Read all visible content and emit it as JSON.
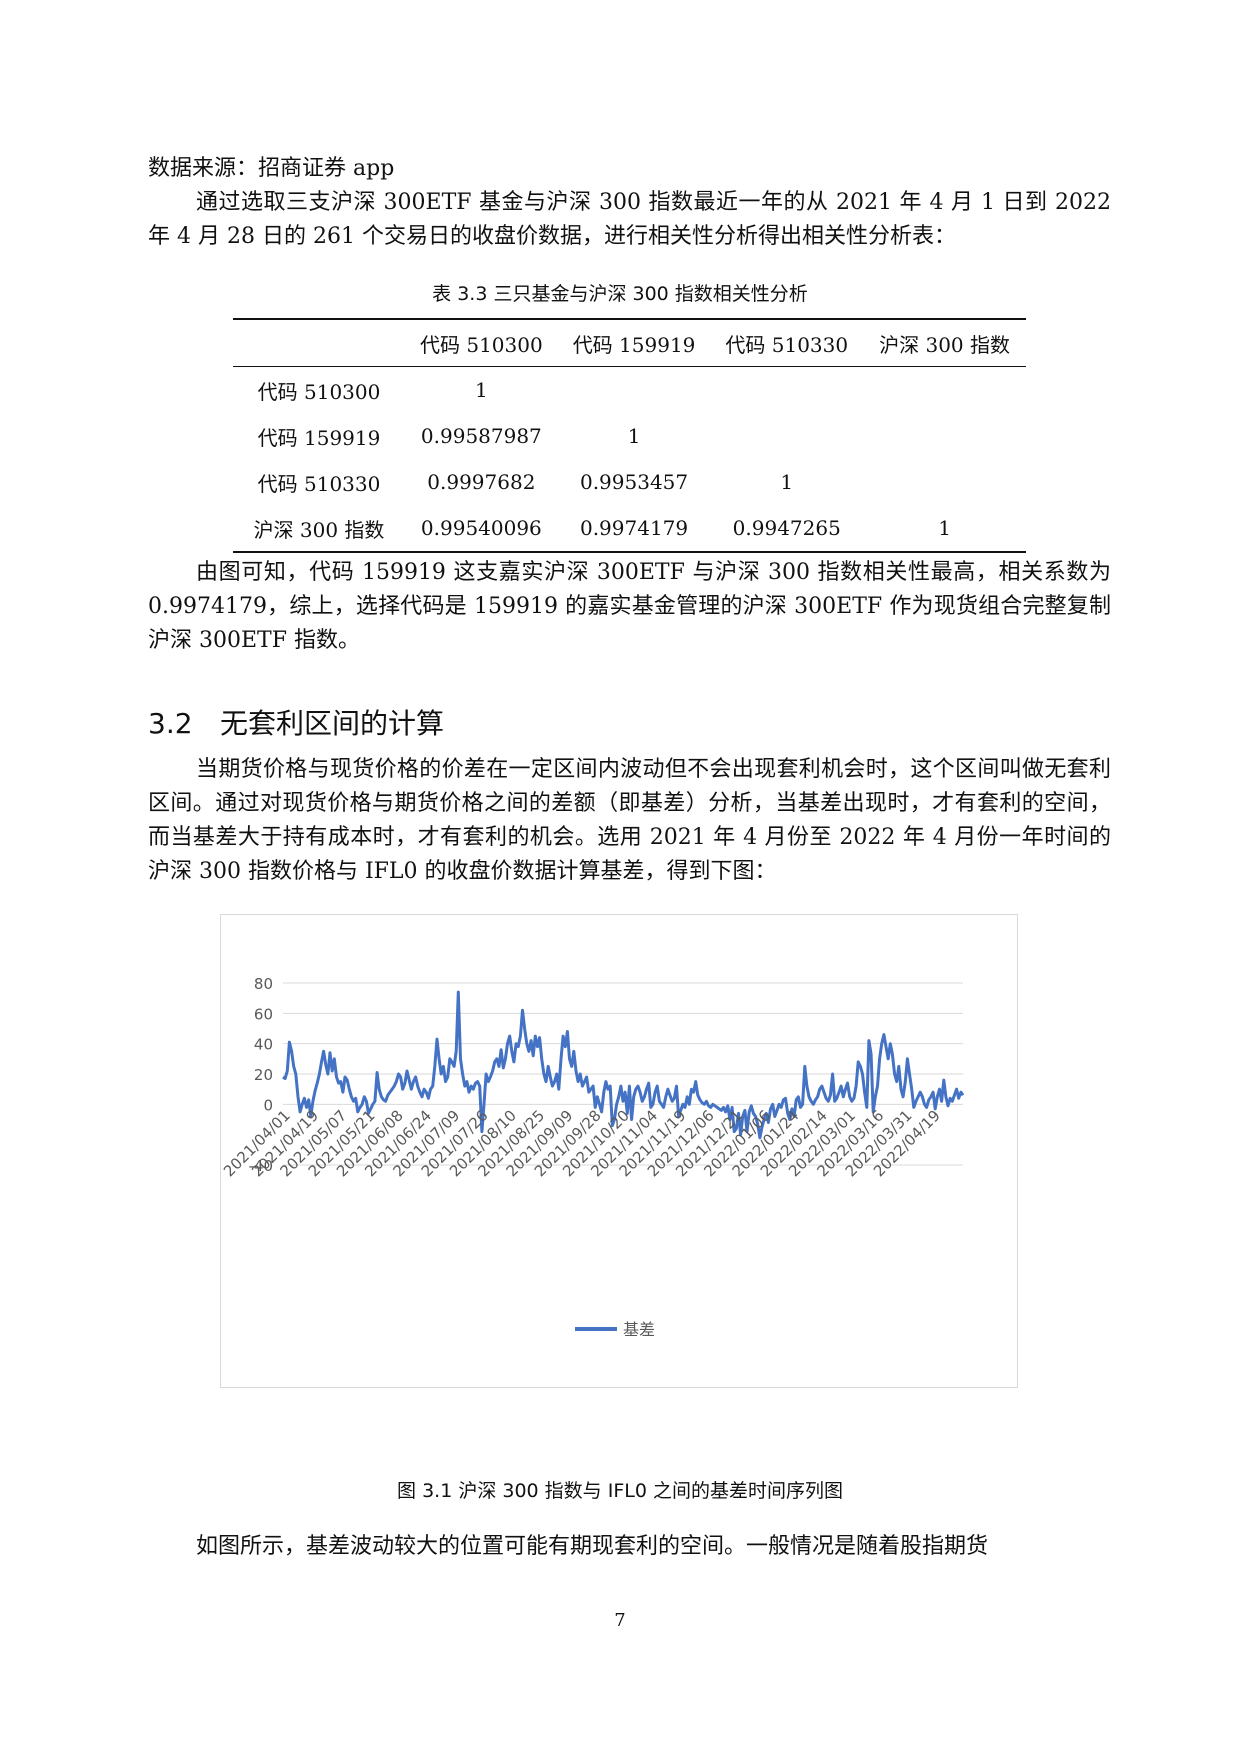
{
  "document": {
    "source_line": "数据来源：招商证券 app",
    "intro_paragraph": "通过选取三支沪深 300ETF 基金与沪深 300 指数最近一年的从 2021 年 4 月 1 日到 2022 年 4 月 28 日的 261 个交易日的收盘价数据，进行相关性分析得出相关性分析表：",
    "table_caption": "表 3.3  三只基金与沪深 300 指数相关性分析",
    "table": {
      "col_headers": [
        "代码 510300",
        "代码 159919",
        "代码 510330",
        "沪深 300 指数"
      ],
      "rows": [
        {
          "label": "代码 510300",
          "cells": [
            "1",
            "",
            "",
            ""
          ]
        },
        {
          "label": "代码 159919",
          "cells": [
            "0.99587987",
            "1",
            "",
            ""
          ]
        },
        {
          "label": "代码 510330",
          "cells": [
            "0.9997682",
            "0.9953457",
            "1",
            ""
          ]
        },
        {
          "label": "沪深 300 指数",
          "cells": [
            "0.99540096",
            "0.9974179",
            "0.9947265",
            "1"
          ]
        }
      ]
    },
    "conclusion_paragraph": "由图可知，代码 159919 这支嘉实沪深 300ETF 与沪深 300 指数相关性最高，相关系数为 0.9974179，综上，选择代码是 159919 的嘉实基金管理的沪深 300ETF 作为现货组合完整复制沪深 300ETF 指数。",
    "section_number": "3.2",
    "section_title": "无套利区间的计算",
    "section_paragraph": "当期货价格与现货价格的价差在一定区间内波动但不会出现套利机会时，这个区间叫做无套利区间。通过对现货价格与期货价格之间的差额（即基差）分析，当基差出现时，才有套利的空间，而当基差大于持有成本时，才有套利的机会。选用 2021 年 4 月份至 2022 年 4 月份一年时间的沪深 300 指数价格与 IFL0 的收盘价数据计算基差，得到下图：",
    "figure_caption": "图 3.1  沪深 300 指数与 IFL0 之间的基差时间序列图",
    "closing_paragraph": "如图所示，基差波动较大的位置可能有期现套利的空间。一般情况是随着股指期货",
    "page_number": "7"
  },
  "colors": {
    "series_line": "#4472C4",
    "gridline": "#d9d9d9",
    "axis_text": "#595959",
    "chart_border": "#d9d9d9"
  },
  "chart_data": {
    "type": "line",
    "title": "",
    "xlabel": "",
    "ylabel": "",
    "ylim": [
      -40,
      80
    ],
    "yticks": [
      80,
      60,
      40,
      20,
      0,
      -40
    ],
    "grid": true,
    "legend_position": "bottom",
    "x_tick_labels": [
      "2021/04/01",
      "2021/04/19",
      "2021/05/07",
      "2021/05/21",
      "2021/06/08",
      "2021/06/24",
      "2021/07/09",
      "2021/07/26",
      "2021/08/10",
      "2021/08/25",
      "2021/09/09",
      "2021/09/28",
      "2021/10/20",
      "2021/11/04",
      "2021/11/19",
      "2021/12/06",
      "2021/12/21",
      "2022/01/06",
      "2022/01/24",
      "2022/02/14",
      "2022/03/01",
      "2022/03/16",
      "2022/03/31",
      "2022/04/19"
    ],
    "series": [
      {
        "name": "基差",
        "values": [
          18,
          17,
          22,
          41,
          35,
          25,
          20,
          5,
          -5,
          0,
          4,
          -2,
          3,
          -8,
          2,
          9,
          14,
          20,
          28,
          35,
          26,
          20,
          34,
          22,
          30,
          18,
          14,
          15,
          8,
          18,
          16,
          10,
          5,
          2,
          4,
          -5,
          -2,
          0,
          5,
          2,
          -6,
          -3,
          0,
          2,
          21,
          10,
          5,
          3,
          2,
          6,
          8,
          10,
          12,
          15,
          20,
          18,
          10,
          14,
          22,
          16,
          10,
          15,
          18,
          12,
          8,
          5,
          10,
          8,
          4,
          10,
          12,
          25,
          43,
          30,
          20,
          25,
          15,
          18,
          30,
          28,
          25,
          35,
          74,
          30,
          20,
          12,
          15,
          8,
          12,
          10,
          14,
          15,
          12,
          -18,
          0,
          20,
          15,
          18,
          22,
          28,
          30,
          25,
          36,
          24,
          30,
          40,
          45,
          35,
          28,
          40,
          38,
          45,
          62,
          50,
          40,
          35,
          42,
          32,
          45,
          38,
          44,
          30,
          20,
          15,
          25,
          18,
          12,
          15,
          20,
          10,
          30,
          45,
          38,
          48,
          30,
          25,
          35,
          22,
          15,
          20,
          12,
          15,
          18,
          8,
          10,
          12,
          -2,
          5,
          0,
          -5,
          8,
          15,
          10,
          12,
          -14,
          -10,
          0,
          5,
          12,
          2,
          8,
          -6,
          12,
          -10,
          5,
          10,
          12,
          8,
          2,
          5,
          10,
          14,
          -2,
          0,
          8,
          12,
          2,
          0,
          -2,
          5,
          10,
          6,
          2,
          4,
          12,
          -8,
          -4,
          0,
          -2,
          5,
          0,
          10,
          8,
          15,
          6,
          3,
          1,
          0,
          2,
          -1,
          -2,
          0,
          -1,
          -2,
          -3,
          -4,
          -2,
          -5,
          -1,
          -10,
          -2,
          -18,
          -16,
          -6,
          -20,
          -8,
          -4,
          -18,
          -5,
          -1,
          -6,
          -8,
          -13,
          -22,
          -15,
          -10,
          -6,
          -12,
          -3,
          0,
          -8,
          -4,
          0,
          -2,
          3,
          4,
          -6,
          -10,
          -3,
          -8,
          3,
          5,
          -2,
          0,
          25,
          12,
          5,
          2,
          0,
          3,
          5,
          10,
          12,
          8,
          4,
          2,
          6,
          20,
          2,
          4,
          8,
          12,
          5,
          10,
          14,
          5,
          2,
          4,
          12,
          28,
          25,
          20,
          8,
          -2,
          42,
          33,
          -5,
          5,
          12,
          30,
          40,
          46,
          38,
          30,
          40,
          33,
          20,
          15,
          25,
          10,
          5,
          15,
          30,
          20,
          10,
          -2,
          2,
          5,
          8,
          5,
          0,
          -2,
          3,
          5,
          8,
          -3,
          5,
          10,
          2,
          16,
          5,
          -1,
          4,
          2,
          6,
          10,
          4,
          8,
          6
        ]
      }
    ]
  }
}
